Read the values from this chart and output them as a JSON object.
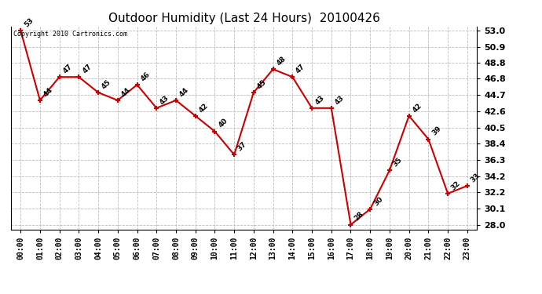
{
  "title": "Outdoor Humidity (Last 24 Hours)  20100426",
  "copyright_text": "Copyright 2010 Cartronics.com",
  "hours": [
    "00:00",
    "01:00",
    "02:00",
    "03:00",
    "04:00",
    "05:00",
    "06:00",
    "07:00",
    "08:00",
    "09:00",
    "10:00",
    "11:00",
    "12:00",
    "13:00",
    "14:00",
    "15:00",
    "16:00",
    "17:00",
    "18:00",
    "19:00",
    "20:00",
    "21:00",
    "22:00",
    "23:00"
  ],
  "values": [
    53,
    44,
    47,
    47,
    45,
    44,
    46,
    43,
    44,
    42,
    40,
    37,
    45,
    48,
    47,
    43,
    43,
    28,
    30,
    35,
    42,
    39,
    32,
    33
  ],
  "yticks": [
    28.0,
    30.1,
    32.2,
    34.2,
    36.3,
    38.4,
    40.5,
    42.6,
    44.7,
    46.8,
    48.8,
    50.9,
    53.0
  ],
  "ylim": [
    27.4,
    53.5
  ],
  "line_color": "#cc0000",
  "marker_color": "#cc0000",
  "bg_color": "#ffffff",
  "grid_color": "#bbbbbb",
  "title_fontsize": 11,
  "label_fontsize": 7,
  "annotation_fontsize": 6.5
}
